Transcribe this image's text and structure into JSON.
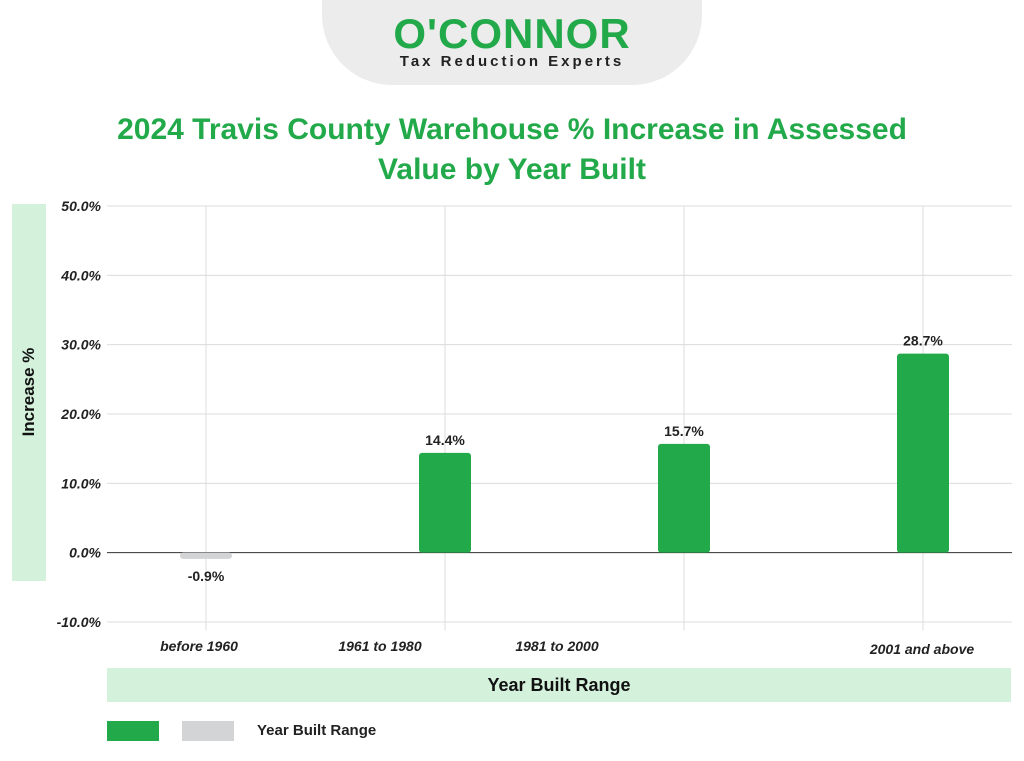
{
  "logo": {
    "wordmark": "O'CONNOR",
    "tagline": "Tax Reduction Experts"
  },
  "chart_data": {
    "type": "bar",
    "title": "2024 Travis County Warehouse % Increase in Assessed Value by Year Built",
    "xlabel": "Year Built  Range",
    "ylabel": "Increase %",
    "categories": [
      "before 1960",
      "1961 to 1980",
      "1981 to 2000",
      "2001 and above"
    ],
    "series": [
      {
        "name": "Year Built  Range",
        "values": [
          -0.9,
          14.4,
          15.7,
          28.7
        ],
        "data_labels": [
          "-0.9%",
          "14.4%",
          "15.7%",
          "28.7%"
        ]
      }
    ],
    "yticks": [
      "50.0%",
      "40.0%",
      "30.0%",
      "20.0%",
      "10.0%",
      "0.0%",
      "-10.0%"
    ],
    "ytick_values": [
      50,
      40,
      30,
      20,
      10,
      0,
      -10
    ],
    "ylim": [
      -10,
      50
    ],
    "grid": true,
    "colors": {
      "positive": "#22a94a",
      "negative": "#d3d4d6",
      "title": "#22a94a",
      "band": "#d4f1db"
    },
    "legend": {
      "position": "bottom-left",
      "label": "Year Built  Range"
    }
  }
}
